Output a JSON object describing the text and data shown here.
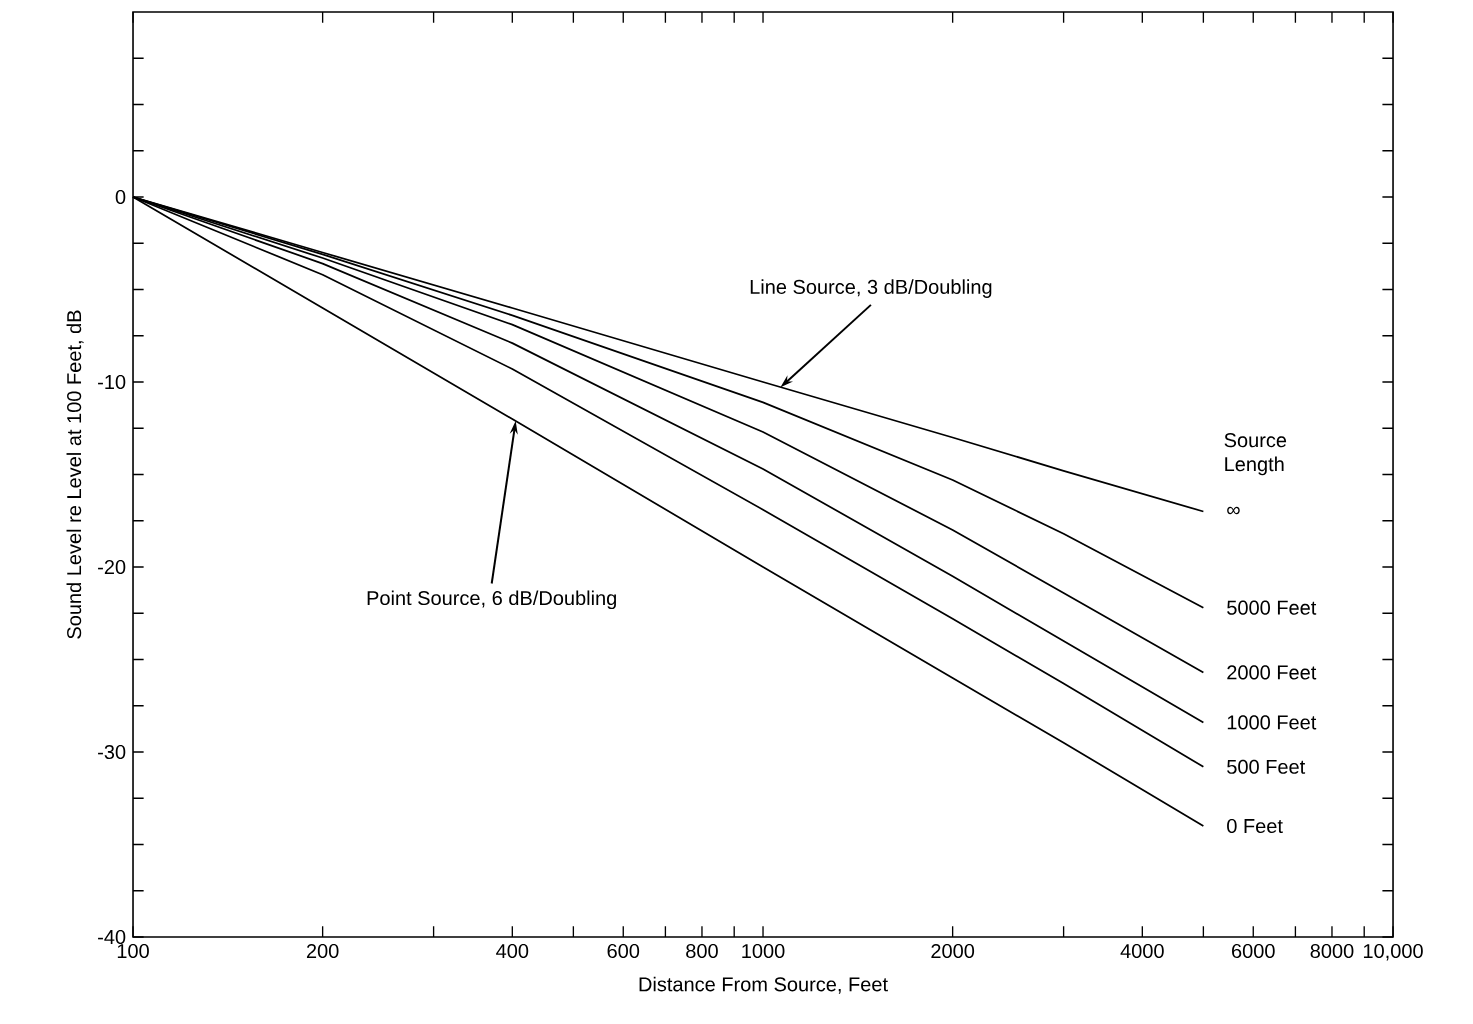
{
  "chart_data": {
    "type": "line",
    "xlabel": "Distance From Source, Feet",
    "ylabel": "Sound Level re Level at 100 Feet, dB",
    "legend_title": "Source Length",
    "log": "x",
    "xlim": [
      100,
      10000
    ],
    "ylim": [
      -40,
      10
    ],
    "xticks": [
      100,
      200,
      {
        "value": 300,
        "label": null
      },
      400,
      {
        "value": 500,
        "label": null
      },
      600,
      {
        "value": 700,
        "label": null
      },
      800,
      {
        "value": 900,
        "label": null
      },
      1000,
      2000,
      {
        "value": 3000,
        "label": null
      },
      4000,
      {
        "value": 5000,
        "label": null
      },
      6000,
      {
        "value": 7000,
        "label": null
      },
      8000,
      {
        "value": 9000,
        "label": null
      },
      {
        "value": 10000,
        "label": "10,000"
      }
    ],
    "yticks": [
      -40,
      {
        "value": -37.5,
        "label": null
      },
      {
        "value": -35,
        "label": null
      },
      {
        "value": -32.5,
        "label": null
      },
      -30,
      {
        "value": -27.5,
        "label": null
      },
      {
        "value": -25,
        "label": null
      },
      {
        "value": -22.5,
        "label": null
      },
      -20,
      {
        "value": -17.5,
        "label": null
      },
      {
        "value": -15,
        "label": null
      },
      {
        "value": -12.5,
        "label": null
      },
      -10,
      {
        "value": -7.5,
        "label": null
      },
      {
        "value": -5,
        "label": null
      },
      {
        "value": -2.5,
        "label": null
      },
      0,
      {
        "value": 2.5,
        "label": null
      },
      {
        "value": 5,
        "label": null
      },
      {
        "value": 7.5,
        "label": null
      }
    ],
    "x": [
      100,
      200,
      400,
      1000,
      2000,
      3000,
      5000
    ],
    "series": [
      {
        "name": "∞",
        "color": "#000000",
        "values": [
          0,
          -3.0,
          -6.0,
          -10.0,
          -13.0,
          -14.8,
          -17.0
        ]
      },
      {
        "name": "5000 Feet",
        "color": "#000000",
        "values": [
          0,
          -3.1,
          -6.4,
          -11.1,
          -15.3,
          -18.2,
          -22.2
        ]
      },
      {
        "name": "2000 Feet",
        "color": "#000000",
        "values": [
          0,
          -3.3,
          -6.9,
          -12.7,
          -18.0,
          -21.4,
          -25.7
        ]
      },
      {
        "name": "1000 Feet",
        "color": "#000000",
        "values": [
          0,
          -3.6,
          -7.9,
          -14.7,
          -20.5,
          -24.0,
          -28.4
        ]
      },
      {
        "name": "500 Feet",
        "color": "#000000",
        "values": [
          0,
          -4.2,
          -9.3,
          -16.9,
          -22.8,
          -26.3,
          -30.8
        ]
      },
      {
        "name": "0 Feet",
        "color": "#000000",
        "values": [
          0,
          -6.0,
          -12.0,
          -20.0,
          -26.0,
          -29.5,
          -34.0
        ]
      }
    ],
    "annotations": [
      {
        "text": "Line Source, 3 dB/Doubling",
        "x": 1065,
        "y": -10.3
      },
      {
        "text": "Point Source, 6 dB/Doubling",
        "x": 405,
        "y": -12.1
      }
    ],
    "grid": false,
    "legend": false,
    "marker": "none",
    "line_style": "solid"
  }
}
